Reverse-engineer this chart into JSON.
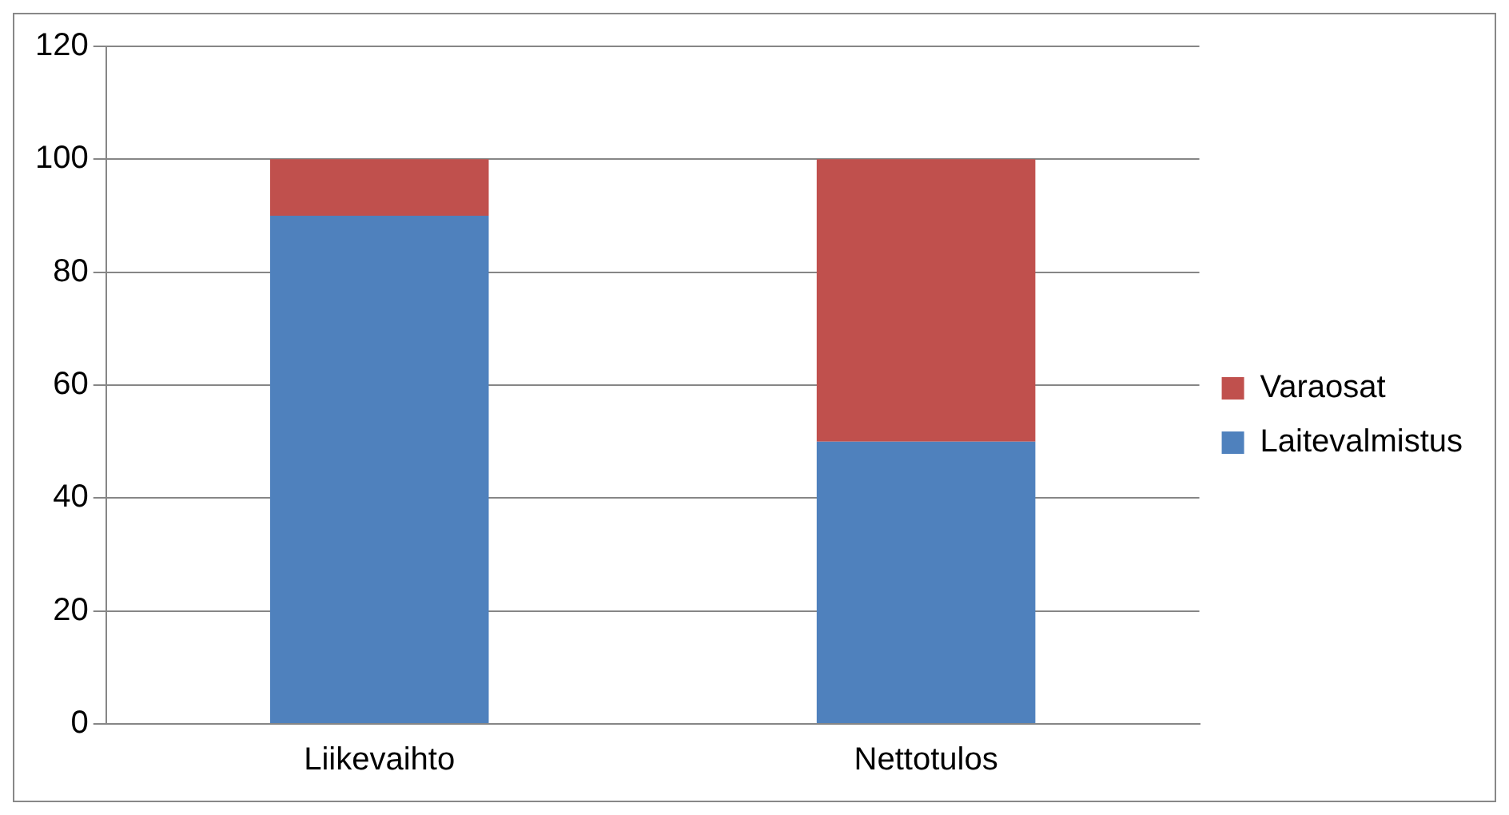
{
  "chart_data": {
    "type": "bar",
    "stacked": true,
    "categories": [
      "Liikevaihto",
      "Nettotulos"
    ],
    "series": [
      {
        "name": "Laitevalmistus",
        "color": "#4f81bd",
        "values": [
          90,
          50
        ]
      },
      {
        "name": "Varaosat",
        "color": "#c0504d",
        "values": [
          10,
          50
        ]
      }
    ],
    "ylim": [
      0,
      120
    ],
    "yticks": [
      0,
      20,
      40,
      60,
      80,
      100,
      120
    ],
    "grid": "y",
    "legend": "right"
  }
}
